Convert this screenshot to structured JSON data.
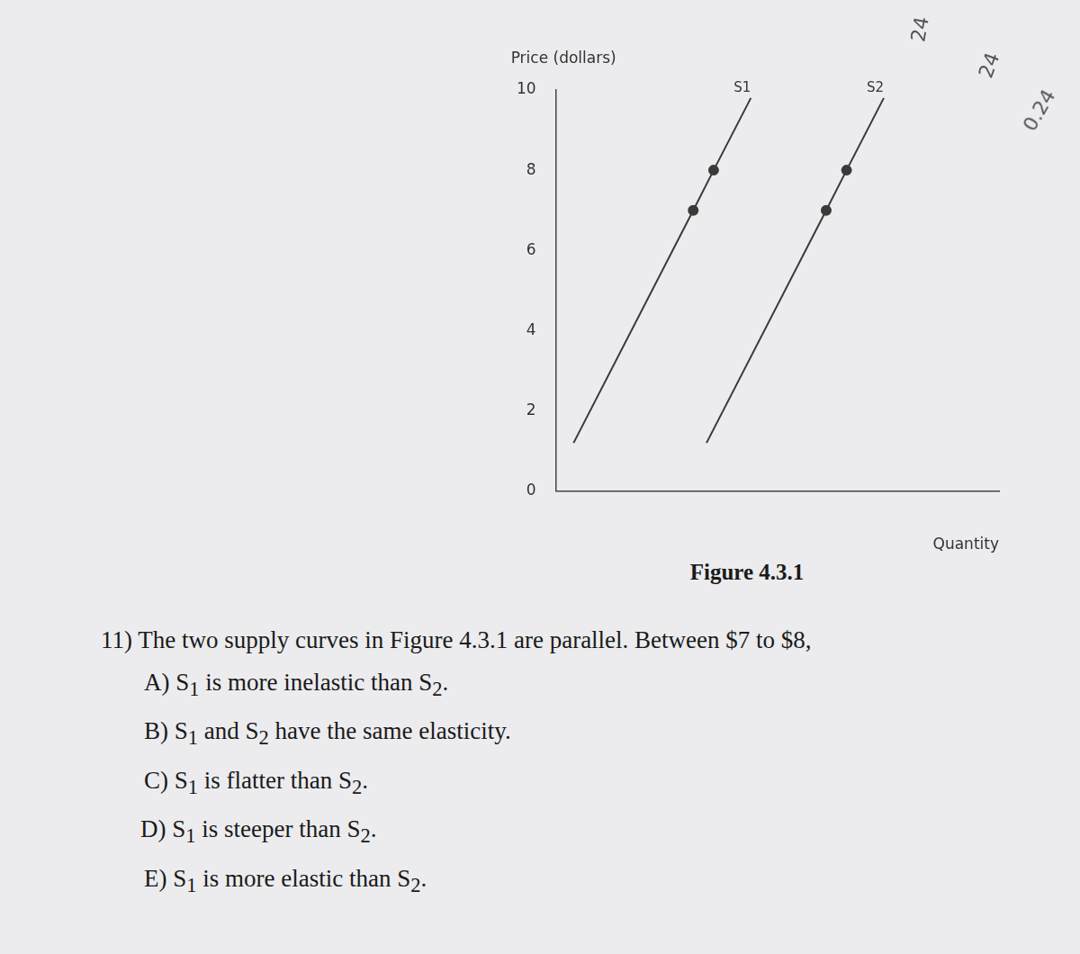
{
  "chart_data": {
    "type": "line",
    "title": "Figure 4.3.1",
    "x_label": "Quantity",
    "y_label": "Price (dollars)",
    "series": [
      {
        "name": "S1",
        "color": "#3a3a3a",
        "marker": "circle",
        "x": [
          0.4,
          3.1,
          3.56,
          4.4
        ],
        "values": [
          1.2,
          7,
          8,
          9.8
        ]
      },
      {
        "name": "S2",
        "color": "#3a3a3a",
        "marker": "circle",
        "x": [
          3.4,
          6.1,
          6.56,
          7.4
        ],
        "values": [
          1.2,
          7,
          8,
          9.8
        ]
      }
    ],
    "xlim": [
      0,
      10
    ],
    "ylim": [
      0,
      10
    ],
    "yticks": [
      0,
      2,
      4,
      6,
      8,
      10
    ],
    "tick_labels": "y",
    "grid": false
  },
  "question": {
    "text": "11) The two supply curves in Figure 4.3.1 are parallel. Between $7 to $8,",
    "options": [
      "A) S1 is more inelastic than S2.",
      "B) S1 and S2 have the same elasticity.",
      "C) S1 is flatter than S2.",
      "D) S1 is steeper than S2.",
      "E) S1 is more elastic than S2."
    ]
  },
  "handwritten_notes": [
    "24",
    "24",
    "0.24"
  ]
}
